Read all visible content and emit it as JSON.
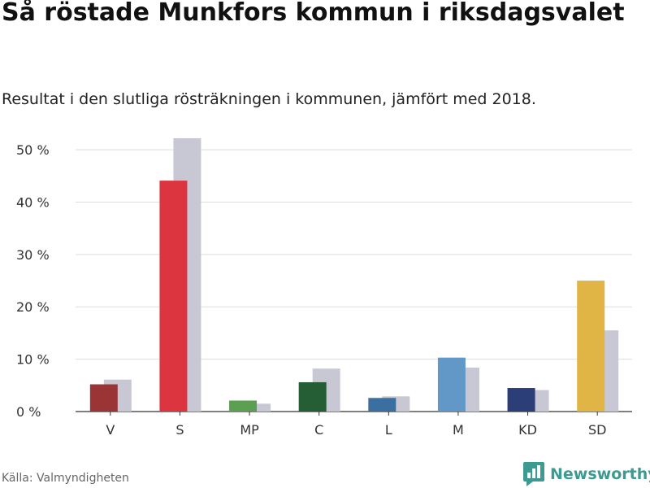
{
  "title": "Så röstade Munkfors kommun i riksdagsvalet",
  "subtitle": "Resultat i den slutliga rösträkningen i kommunen, jämfört med 2018.",
  "source": "Källa: Valmyndigheten",
  "brand": "Newsworthy",
  "colors": {
    "previous": "#c8c8d4",
    "grid": "#dddddd",
    "axis": "#333333",
    "brand": "#3d9a90"
  },
  "chart_data": {
    "type": "bar",
    "categories": [
      "V",
      "S",
      "MP",
      "C",
      "L",
      "M",
      "KD",
      "SD"
    ],
    "bar_colors": [
      "#9b3535",
      "#dc3540",
      "#5aa050",
      "#255e35",
      "#3a6fa0",
      "#6298c8",
      "#2c3e78",
      "#e0b545"
    ],
    "series": [
      {
        "values": [
          5.2,
          44.1,
          2.1,
          5.6,
          2.6,
          10.3,
          4.5,
          25.0
        ]
      },
      {
        "values": [
          6.1,
          52.2,
          1.5,
          8.2,
          2.9,
          8.4,
          4.1,
          15.5
        ]
      }
    ],
    "yticks": [
      0,
      10,
      20,
      30,
      40,
      50
    ],
    "ytick_labels": [
      "0 %",
      "10 %",
      "20 %",
      "30 %",
      "40 %",
      "50 %"
    ],
    "ylim": [
      0,
      52.5
    ],
    "grid": true
  }
}
